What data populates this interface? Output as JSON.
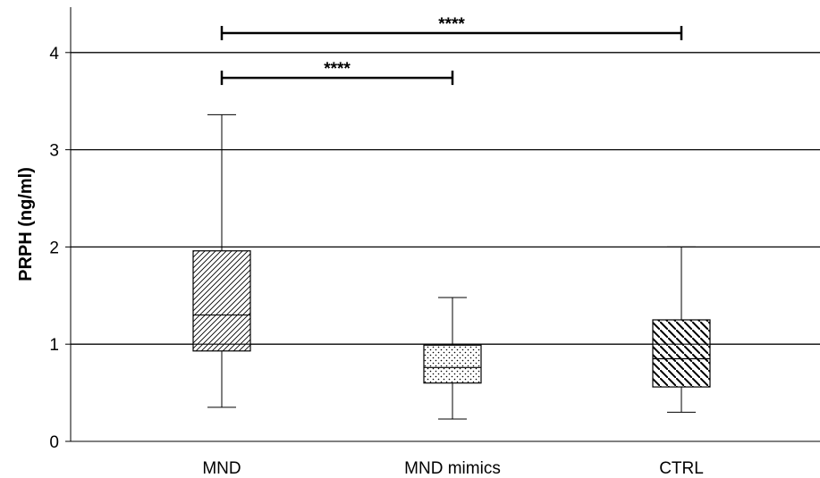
{
  "chart_data": {
    "type": "box",
    "ylabel": "PRPH (ng/ml)",
    "ylim": [
      0,
      4.4
    ],
    "yticks": [
      0,
      1,
      2,
      3,
      4
    ],
    "grid": true,
    "categories": [
      "MND",
      "MND mimics",
      "CTRL"
    ],
    "boxes": [
      {
        "category": "MND",
        "whisker_low": 0.35,
        "q1": 0.93,
        "median": 1.3,
        "q3": 1.96,
        "whisker_high": 3.36,
        "pattern": "diag-fwd"
      },
      {
        "category": "MND mimics",
        "whisker_low": 0.23,
        "q1": 0.6,
        "median": 0.76,
        "q3": 0.99,
        "whisker_high": 1.48,
        "pattern": "dots"
      },
      {
        "category": "CTRL",
        "whisker_low": 0.3,
        "q1": 0.56,
        "median": 0.85,
        "q3": 1.25,
        "whisker_high": 2.0,
        "pattern": "diag-back"
      }
    ],
    "significance": [
      {
        "from": "MND",
        "to": "MND mimics",
        "y": 3.74,
        "label": "****"
      },
      {
        "from": "MND",
        "to": "CTRL",
        "y": 4.2,
        "label": "****"
      }
    ]
  }
}
